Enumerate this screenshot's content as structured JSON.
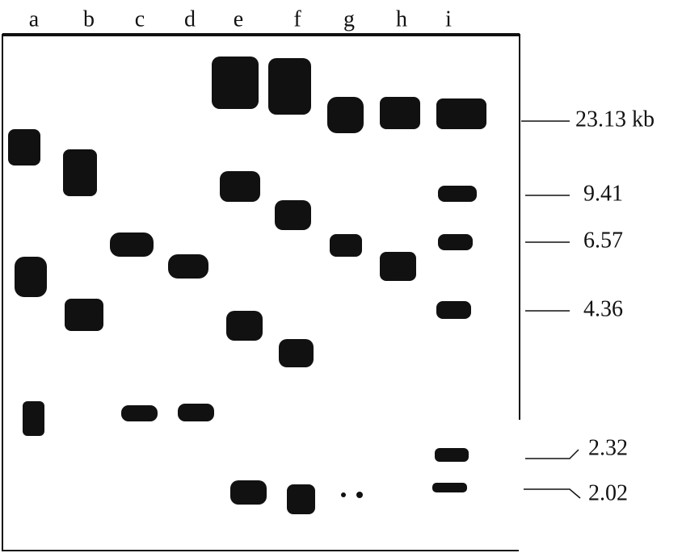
{
  "lanes": [
    "a",
    "b",
    "c",
    "d",
    "e",
    "f",
    "g",
    "h",
    "i"
  ],
  "markers": [
    "23.13 kb",
    "9.41",
    "6.57",
    "4.36",
    "2.32",
    "2.02"
  ]
}
